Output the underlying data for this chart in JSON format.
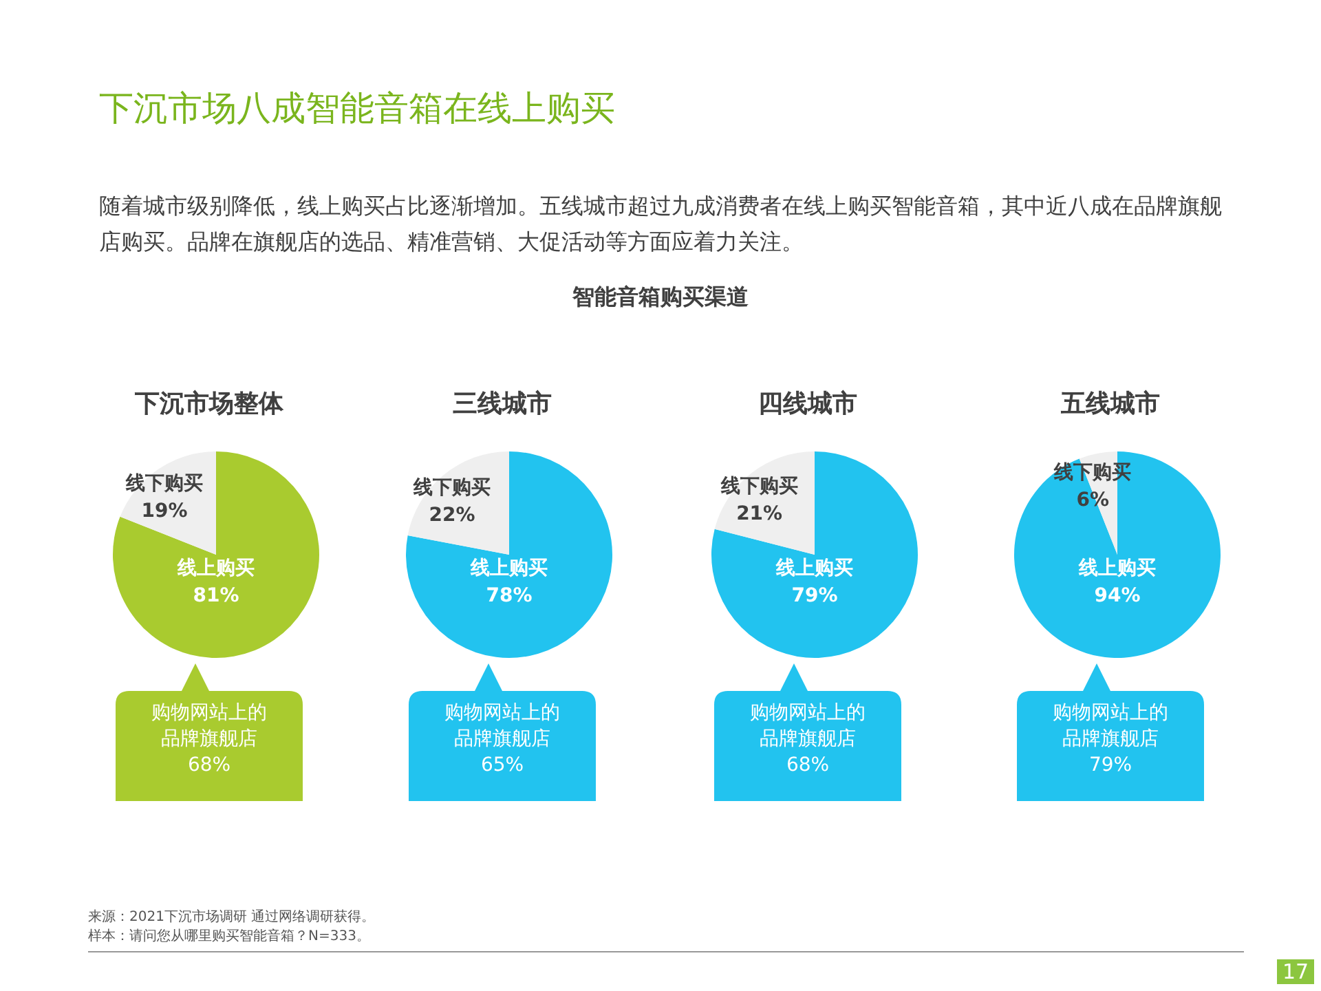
{
  "chart_data": [
    {
      "type": "other",
      "title": "下沉市场八成智能音箱在线上购买",
      "subtitle": "随着城市级别降低，线上购买占比逐渐增加。五线城市超过九成消费者在线上购买智能音箱，其中近八成在品牌旗舰店购买。品牌在旗舰店的选品、精准营销、大促活动等方面应着力关注。",
      "annotations": [
        "智能音箱购买渠道"
      ]
    },
    {
      "type": "pie",
      "title": "下沉市场整体",
      "categories": [
        "线上购买",
        "线下购买"
      ],
      "values": [
        81,
        19
      ],
      "value_labels": [
        "81%",
        "19%"
      ],
      "colors": [
        "#a9cb2f",
        "#efefef"
      ],
      "annotations": [
        "购物网站上的品牌旗舰店",
        "68%"
      ]
    },
    {
      "type": "pie",
      "title": "三线城市",
      "categories": [
        "线上购买",
        "线下购买"
      ],
      "values": [
        78,
        22
      ],
      "value_labels": [
        "78%",
        "22%"
      ],
      "colors": [
        "#22c3ef",
        "#efefef"
      ],
      "annotations": [
        "购物网站上的品牌旗舰店",
        "65%"
      ]
    },
    {
      "type": "pie",
      "title": "四线城市",
      "categories": [
        "线上购买",
        "线下购买"
      ],
      "values": [
        79,
        21
      ],
      "value_labels": [
        "79%",
        "21%"
      ],
      "colors": [
        "#22c3ef",
        "#efefef"
      ],
      "annotations": [
        "购物网站上的品牌旗舰店",
        "68%"
      ]
    },
    {
      "type": "pie",
      "title": "五线城市",
      "categories": [
        "线上购买",
        "线下购买"
      ],
      "values": [
        94,
        6
      ],
      "value_labels": [
        "94%",
        "6%"
      ],
      "colors": [
        "#22c3ef",
        "#efefef"
      ],
      "annotations": [
        "购物网站上的品牌旗舰店",
        "79%"
      ]
    },
    {
      "type": "other",
      "annotations": [
        "来源：2021下沉市场调研 通过网络调研获得。",
        "样本：请问您从哪里购买智能音箱？N=333。",
        "17"
      ]
    }
  ]
}
